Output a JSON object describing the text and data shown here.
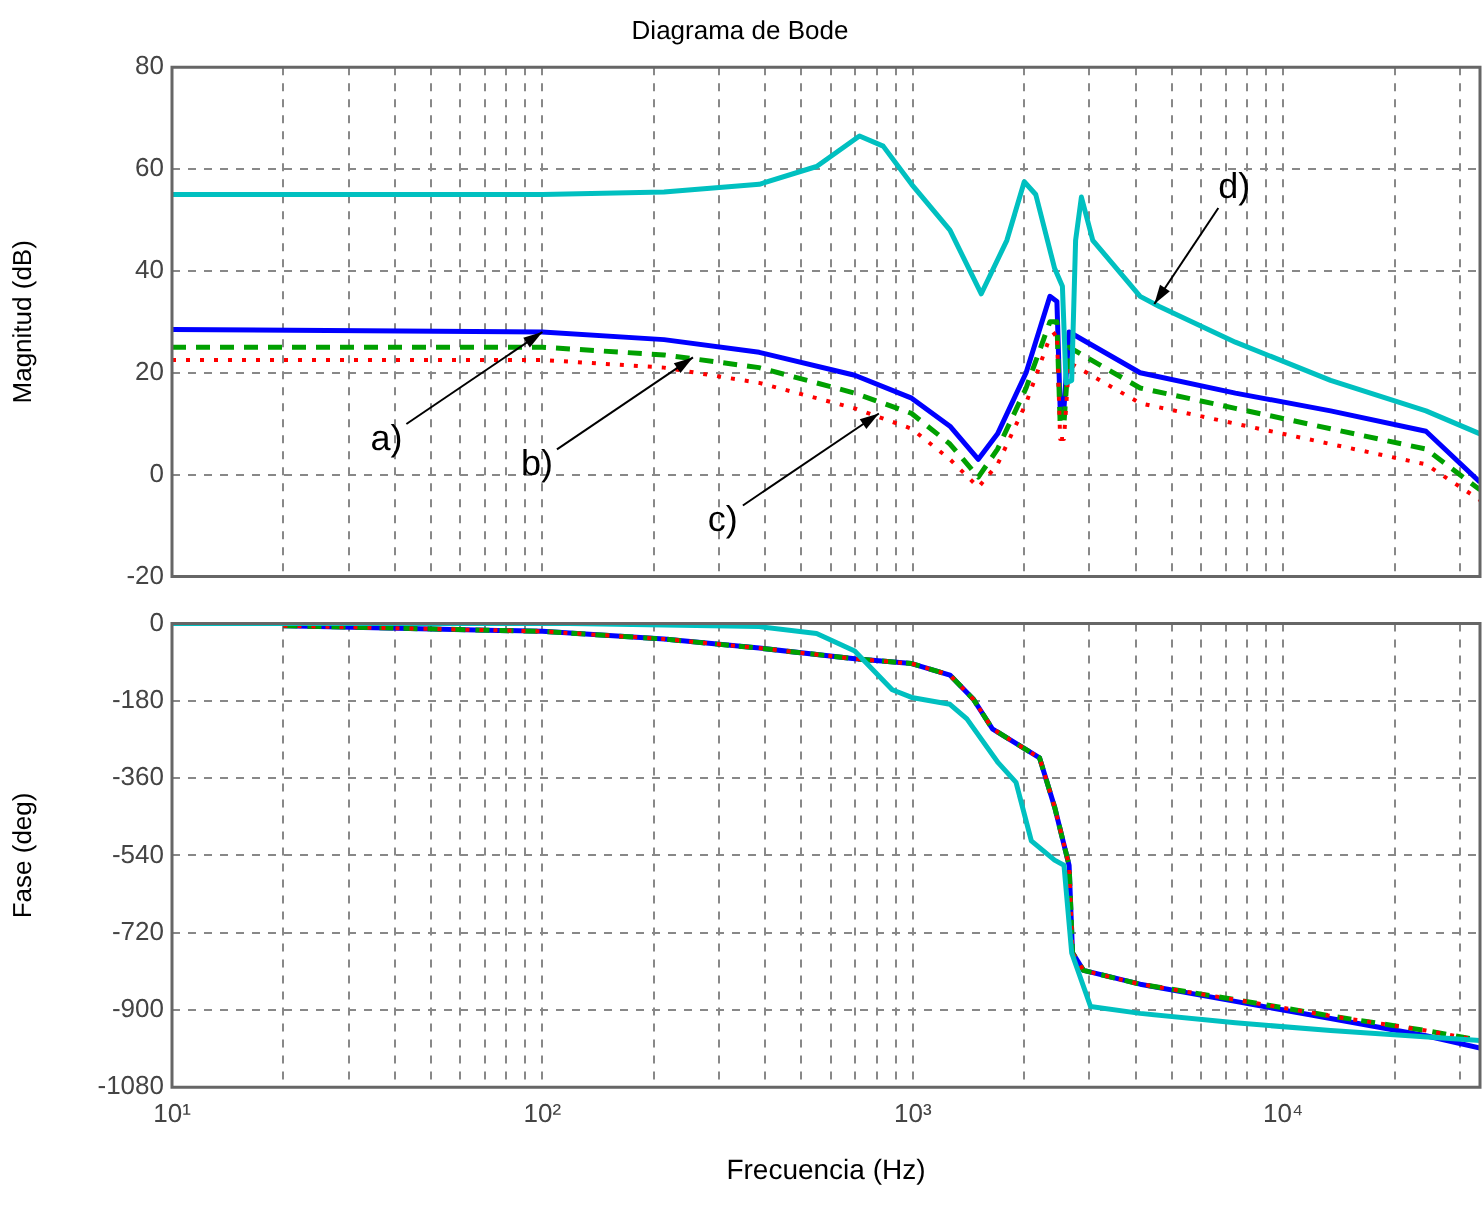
{
  "chart_data": [
    {
      "type": "line",
      "title": "Diagrama de Bode",
      "ylabel": "Magnitud (dB)",
      "xlim": [
        10,
        34000
      ],
      "ylim": [
        -20,
        80
      ],
      "yticks": [
        -20,
        0,
        20,
        40,
        60,
        80
      ],
      "log": "x",
      "grid": true,
      "legend": false,
      "tick_labels": "y",
      "marker": "none",
      "xticks": [
        {
          "value": 10,
          "label": null
        },
        {
          "value": 20,
          "label": null
        },
        {
          "value": 30,
          "label": null
        },
        {
          "value": 40,
          "label": null
        },
        {
          "value": 50,
          "label": null
        },
        {
          "value": 60,
          "label": null
        },
        {
          "value": 70,
          "label": null
        },
        {
          "value": 80,
          "label": null
        },
        {
          "value": 90,
          "label": null
        },
        {
          "value": 100,
          "label": null
        },
        {
          "value": 200,
          "label": null
        },
        {
          "value": 300,
          "label": null
        },
        {
          "value": 400,
          "label": null
        },
        {
          "value": 500,
          "label": null
        },
        {
          "value": 600,
          "label": null
        },
        {
          "value": 700,
          "label": null
        },
        {
          "value": 800,
          "label": null
        },
        {
          "value": 900,
          "label": null
        },
        {
          "value": 1000,
          "label": null
        },
        {
          "value": 2000,
          "label": null
        },
        {
          "value": 3000,
          "label": null
        },
        {
          "value": 4000,
          "label": null
        },
        {
          "value": 5000,
          "label": null
        },
        {
          "value": 6000,
          "label": null
        },
        {
          "value": 7000,
          "label": null
        },
        {
          "value": 8000,
          "label": null
        },
        {
          "value": 9000,
          "label": null
        },
        {
          "value": 10000,
          "label": null
        },
        {
          "value": 20000,
          "label": null
        },
        {
          "value": 30000,
          "label": null
        }
      ],
      "series": [
        {
          "color": "#0000ff",
          "line_style": "solid",
          "x": [
            10,
            100,
            213,
            385,
            697,
            993,
            1260,
            1503,
            1694,
            2023,
            2346,
            2450,
            2500,
            2560,
            2643,
            4110,
            7430,
            13430,
            24300,
            34000
          ],
          "values": [
            28.5,
            28,
            26.5,
            24,
            19.5,
            15,
            9.5,
            3,
            8,
            20,
            35,
            34,
            13,
            13,
            28,
            20,
            16,
            12.5,
            8.5,
            -1.5
          ]
        },
        {
          "color": "#00a000",
          "line_style": "dashed",
          "x": [
            10,
            100,
            213,
            385,
            697,
            993,
            1260,
            1503,
            1694,
            2023,
            2346,
            2450,
            2500,
            2560,
            2643,
            4110,
            7430,
            13430,
            24300,
            34000
          ],
          "values": [
            25,
            25,
            23.5,
            21,
            16,
            12,
            6,
            -0.5,
            5,
            17,
            30,
            30,
            10,
            10,
            25,
            17,
            13,
            9,
            5,
            -3
          ]
        },
        {
          "color": "#ff0000",
          "line_style": "dotted",
          "x": [
            10,
            100,
            213,
            385,
            697,
            993,
            1260,
            1503,
            1694,
            2023,
            2346,
            2450,
            2500,
            2560,
            2643,
            4110,
            7430,
            13430,
            24300,
            34000
          ],
          "values": [
            22.5,
            22.5,
            21,
            18,
            13,
            9,
            3,
            -2.5,
            2,
            14,
            27,
            28,
            7,
            7,
            22,
            14,
            10,
            6,
            2,
            -5
          ]
        },
        {
          "color": "#00c0c0",
          "line_style": "solid",
          "x": [
            10,
            100,
            213,
            385,
            550,
            718,
            832,
            993,
            1260,
            1531,
            1795,
            2000,
            2148,
            2415,
            2535,
            2594,
            2686,
            2752,
            2853,
            3062,
            4110,
            4630,
            7430,
            13430,
            24300,
            34000
          ],
          "values": [
            55,
            55,
            55.5,
            57,
            60.5,
            66.5,
            64.5,
            57,
            48,
            35.5,
            46,
            57.5,
            55,
            40.5,
            37,
            18,
            18.5,
            46,
            54.5,
            46,
            35,
            33,
            26,
            18.5,
            12.5,
            8
          ]
        }
      ],
      "annotations": [
        {
          "text": "a)",
          "x": 100,
          "y": 28
        },
        {
          "text": "b)",
          "x": 255,
          "y": 23
        },
        {
          "text": "c)",
          "x": 810,
          "y": 12
        },
        {
          "text": "d)",
          "x": 4490,
          "y": 33.5
        }
      ]
    },
    {
      "type": "line",
      "xlabel": "Frecuencia (Hz)",
      "ylabel": "Fase (deg)",
      "xlim": [
        10,
        34000
      ],
      "ylim": [
        -1080,
        0
      ],
      "yticks": [
        -1080,
        -900,
        -720,
        -540,
        -360,
        -180,
        0
      ],
      "log": "x",
      "grid": true,
      "legend": false,
      "marker": "none",
      "xticks": [
        {
          "value": 10,
          "label": "10¹"
        },
        {
          "value": 20,
          "label": null
        },
        {
          "value": 30,
          "label": null
        },
        {
          "value": 40,
          "label": null
        },
        {
          "value": 50,
          "label": null
        },
        {
          "value": 60,
          "label": null
        },
        {
          "value": 70,
          "label": null
        },
        {
          "value": 80,
          "label": null
        },
        {
          "value": 90,
          "label": null
        },
        {
          "value": 100,
          "label": "10²"
        },
        {
          "value": 200,
          "label": null
        },
        {
          "value": 300,
          "label": null
        },
        {
          "value": 400,
          "label": null
        },
        {
          "value": 500,
          "label": null
        },
        {
          "value": 600,
          "label": null
        },
        {
          "value": 700,
          "label": null
        },
        {
          "value": 800,
          "label": null
        },
        {
          "value": 900,
          "label": null
        },
        {
          "value": 1000,
          "label": "10³"
        },
        {
          "value": 2000,
          "label": null
        },
        {
          "value": 3000,
          "label": null
        },
        {
          "value": 4000,
          "label": null
        },
        {
          "value": 5000,
          "label": null
        },
        {
          "value": 6000,
          "label": null
        },
        {
          "value": 7000,
          "label": null
        },
        {
          "value": 8000,
          "label": null
        },
        {
          "value": 9000,
          "label": null
        },
        {
          "value": 10000,
          "label": "10⁴"
        },
        {
          "value": 20000,
          "label": null
        },
        {
          "value": 30000,
          "label": null
        }
      ],
      "series": [
        {
          "color": "#0000ff",
          "line_style": "solid",
          "x": [
            20,
            100,
            213,
            385,
            697,
            993,
            1260,
            1460,
            1640,
            1900,
            2200,
            2415,
            2643,
            2700,
            2890,
            4110,
            7430,
            13430,
            24300,
            34000
          ],
          "values": [
            -5,
            -18,
            -36,
            -57,
            -82,
            -93,
            -120,
            -177,
            -245,
            -279,
            -313,
            -427,
            -563,
            -767,
            -808,
            -840,
            -880,
            -920,
            -960,
            -989
          ]
        },
        {
          "color": "#00a000",
          "line_style": "dashed",
          "x": [
            20,
            100,
            213,
            385,
            697,
            993,
            1260,
            1460,
            1640,
            1900,
            2200,
            2415,
            2643,
            2700,
            2890,
            4110,
            7430,
            13430,
            24300,
            34000
          ],
          "values": [
            -5,
            -18,
            -36,
            -57,
            -82,
            -93,
            -120,
            -177,
            -245,
            -279,
            -313,
            -427,
            -563,
            -767,
            -808,
            -840,
            -876,
            -914,
            -948,
            -971
          ]
        },
        {
          "color": "#ff0000",
          "line_style": "dotted",
          "x": [
            20,
            100,
            213,
            385,
            697,
            993,
            1260,
            1460,
            1640,
            1900,
            2200,
            2415,
            2643,
            2700,
            2890,
            4110,
            7430,
            13430,
            24300,
            34000
          ],
          "values": [
            -5,
            -18,
            -36,
            -57,
            -82,
            -93,
            -120,
            -177,
            -245,
            -279,
            -313,
            -427,
            -563,
            -767,
            -808,
            -840,
            -876,
            -914,
            -948,
            -971
          ]
        },
        {
          "color": "#00c0c0",
          "line_style": "solid",
          "x": [
            10,
            118,
            385,
            550,
            697,
            880,
            993,
            1260,
            1400,
            1700,
            1900,
            2090,
            2415,
            2560,
            2686,
            3020,
            4110,
            7430,
            13430,
            34000
          ],
          "values": [
            0,
            0,
            -7,
            -23,
            -64,
            -154,
            -172,
            -188,
            -222,
            -324,
            -370,
            -506,
            -551,
            -563,
            -767,
            -892,
            -908,
            -930,
            -948,
            -971
          ]
        }
      ]
    }
  ]
}
